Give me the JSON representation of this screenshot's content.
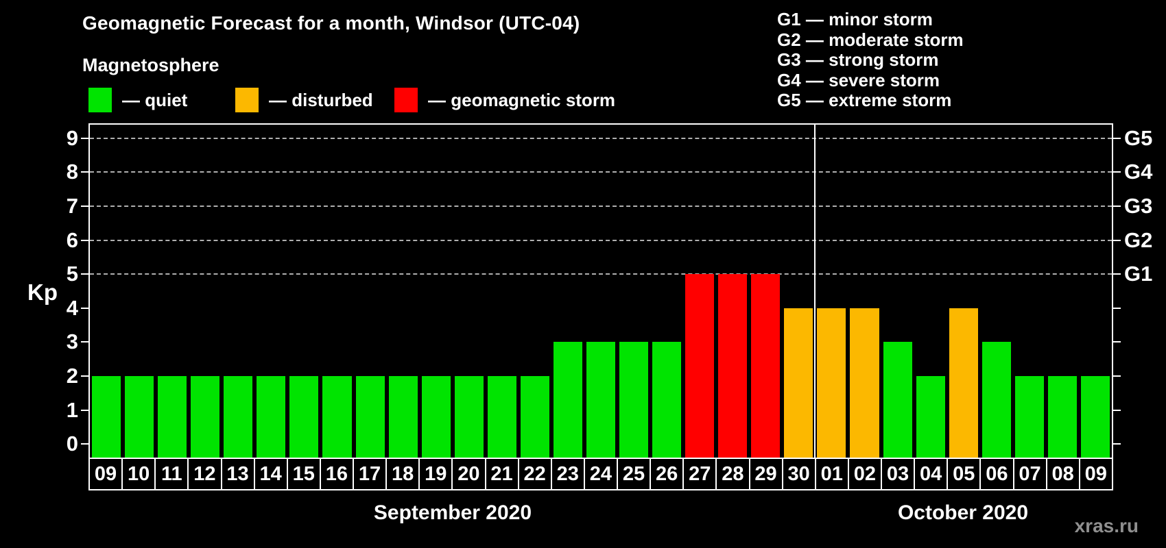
{
  "title": "Geomagnetic Forecast for a month, Windsor (UTC-04)",
  "magnetosphere_label": "Magnetosphere",
  "legend_items": [
    {
      "id": "quiet",
      "label": "— quiet",
      "color": "#00e400"
    },
    {
      "id": "disturbed",
      "label": "— disturbed",
      "color": "#fcb800"
    },
    {
      "id": "storm",
      "label": "— geomagnetic storm",
      "color": "#ff0000"
    }
  ],
  "g_scale_legend": [
    "G1 — minor storm",
    "G2 — moderate storm",
    "G3 — strong storm",
    "G4 — severe storm",
    "G5 — extreme storm"
  ],
  "watermark": "xras.ru",
  "chart_data": {
    "type": "bar",
    "ylabel": "Kp",
    "ylim": [
      0,
      9
    ],
    "yticks": [
      0,
      1,
      2,
      3,
      4,
      5,
      6,
      7,
      8,
      9
    ],
    "gridlines_at": [
      5,
      6,
      7,
      8,
      9
    ],
    "grid_style": "dashed",
    "right_axis": [
      {
        "kp": 5,
        "label": "G1"
      },
      {
        "kp": 6,
        "label": "G2"
      },
      {
        "kp": 7,
        "label": "G3"
      },
      {
        "kp": 8,
        "label": "G4"
      },
      {
        "kp": 9,
        "label": "G5"
      }
    ],
    "months": [
      {
        "label": "September 2020",
        "days": 22
      },
      {
        "label": "October 2020",
        "days": 9
      }
    ],
    "bars": [
      {
        "day": "09",
        "kp": 2,
        "condition": "quiet"
      },
      {
        "day": "10",
        "kp": 2,
        "condition": "quiet"
      },
      {
        "day": "11",
        "kp": 2,
        "condition": "quiet"
      },
      {
        "day": "12",
        "kp": 2,
        "condition": "quiet"
      },
      {
        "day": "13",
        "kp": 2,
        "condition": "quiet"
      },
      {
        "day": "14",
        "kp": 2,
        "condition": "quiet"
      },
      {
        "day": "15",
        "kp": 2,
        "condition": "quiet"
      },
      {
        "day": "16",
        "kp": 2,
        "condition": "quiet"
      },
      {
        "day": "17",
        "kp": 2,
        "condition": "quiet"
      },
      {
        "day": "18",
        "kp": 2,
        "condition": "quiet"
      },
      {
        "day": "19",
        "kp": 2,
        "condition": "quiet"
      },
      {
        "day": "20",
        "kp": 2,
        "condition": "quiet"
      },
      {
        "day": "21",
        "kp": 2,
        "condition": "quiet"
      },
      {
        "day": "22",
        "kp": 2,
        "condition": "quiet"
      },
      {
        "day": "23",
        "kp": 3,
        "condition": "quiet"
      },
      {
        "day": "24",
        "kp": 3,
        "condition": "quiet"
      },
      {
        "day": "25",
        "kp": 3,
        "condition": "quiet"
      },
      {
        "day": "26",
        "kp": 3,
        "condition": "quiet"
      },
      {
        "day": "27",
        "kp": 5,
        "condition": "storm"
      },
      {
        "day": "28",
        "kp": 5,
        "condition": "storm"
      },
      {
        "day": "29",
        "kp": 5,
        "condition": "storm"
      },
      {
        "day": "30",
        "kp": 4,
        "condition": "disturbed"
      },
      {
        "day": "01",
        "kp": 4,
        "condition": "disturbed"
      },
      {
        "day": "02",
        "kp": 4,
        "condition": "disturbed"
      },
      {
        "day": "03",
        "kp": 3,
        "condition": "quiet"
      },
      {
        "day": "04",
        "kp": 2,
        "condition": "quiet"
      },
      {
        "day": "05",
        "kp": 4,
        "condition": "disturbed"
      },
      {
        "day": "06",
        "kp": 3,
        "condition": "quiet"
      },
      {
        "day": "07",
        "kp": 2,
        "condition": "quiet"
      },
      {
        "day": "08",
        "kp": 2,
        "condition": "quiet"
      },
      {
        "day": "09",
        "kp": 2,
        "condition": "quiet"
      }
    ]
  }
}
